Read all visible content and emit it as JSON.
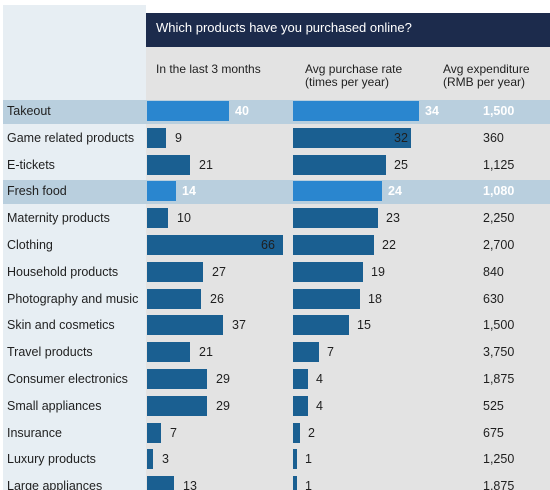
{
  "chart_data": {
    "type": "bar",
    "title": "Which products have you purchased online?",
    "columns": {
      "last3m": "In the last 3 months",
      "rate": "Avg purchase rate\n(times per year)",
      "expenditure": "Avg expenditure\n(RMB per year)"
    },
    "categories": [
      "Takeout",
      "Game related products",
      "E-tickets",
      "Fresh food",
      "Maternity products",
      "Clothing",
      "Household products",
      "Photography and music",
      "Skin and cosmetics",
      "Travel products",
      "Consumer electronics",
      "Small appliances",
      "Insurance",
      "Luxury products",
      "Large appliances"
    ],
    "series": [
      {
        "name": "In the last 3 months",
        "values": [
          40,
          9,
          21,
          14,
          10,
          66,
          27,
          26,
          37,
          21,
          29,
          29,
          7,
          3,
          13
        ]
      },
      {
        "name": "Avg purchase rate (times per year)",
        "values": [
          34,
          32,
          25,
          24,
          23,
          22,
          19,
          18,
          15,
          7,
          4,
          4,
          2,
          1,
          1
        ]
      }
    ],
    "expenditure": [
      "1,500",
      "360",
      "1,125",
      "1,080",
      "2,250",
      "2,700",
      "840",
      "630",
      "1,500",
      "3,750",
      "1,875",
      "525",
      "675",
      "1,250",
      "1,875"
    ],
    "highlighted": [
      "Takeout",
      "Fresh food"
    ],
    "colors": {
      "bar": "#1a5f91",
      "bar_highlight": "#2a86cf",
      "row_highlight": "#b9cfde",
      "title_bg": "#1c2b4c",
      "panel_bg": "#e3e3e3",
      "label_bg": "#e7eef3"
    },
    "grid": false,
    "legend": "none"
  }
}
